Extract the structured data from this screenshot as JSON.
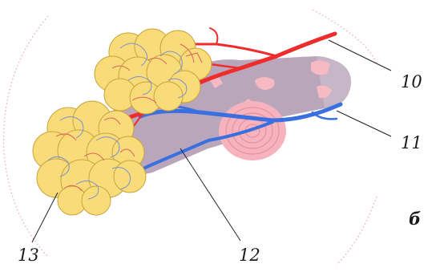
{
  "labels": {
    "l10": "10",
    "l11": "11",
    "l12": "12",
    "l13": "13",
    "panel": "б"
  },
  "colors": {
    "alveoli_fill": "#f9dc7a",
    "alveoli_stroke": "#c9a33a",
    "artery": "#ee2c2c",
    "vein": "#3a6fe0",
    "bronchiole": "#b9a6ba",
    "cartilage_pink": "#f7b9c2",
    "muscle_ring": "#f6b3bd",
    "frame_dots": "#e9a0c8"
  }
}
